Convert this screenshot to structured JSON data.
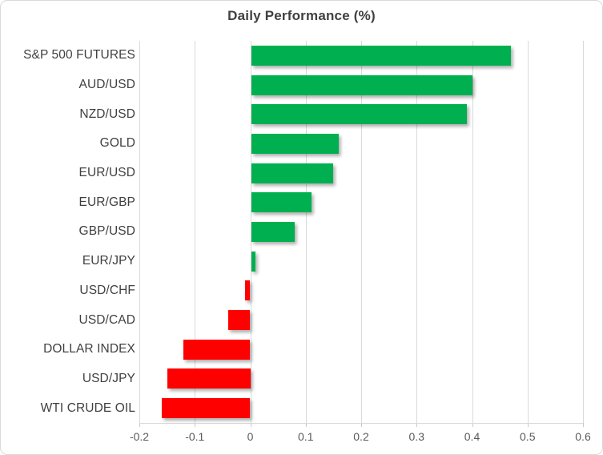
{
  "chart_data": {
    "type": "bar",
    "orientation": "horizontal",
    "title": "Daily Performance (%)",
    "categories": [
      "S&P 500 FUTURES",
      "AUD/USD",
      "NZD/USD",
      "GOLD",
      "EUR/USD",
      "EUR/GBP",
      "GBP/USD",
      "EUR/JPY",
      "USD/CHF",
      "USD/CAD",
      "DOLLAR INDEX",
      "USD/JPY",
      "WTI CRUDE OIL"
    ],
    "values": [
      0.47,
      0.4,
      0.39,
      0.16,
      0.15,
      0.11,
      0.08,
      0.01,
      -0.01,
      -0.04,
      -0.12,
      -0.15,
      -0.16
    ],
    "x_tick_labels": [
      "-0.2",
      "-0.1",
      "0",
      "0.1",
      "0.2",
      "0.3",
      "0.4",
      "0.5",
      "0.6"
    ],
    "xlim": [
      -0.2,
      0.6
    ],
    "xlabel": "",
    "ylabel": "",
    "grid": "vertical",
    "legend": "none",
    "colors": {
      "positive": "#00B050",
      "negative": "#FF0000",
      "gridline": "#D9D9D9",
      "axis_text": "#595959",
      "label_text": "#404040",
      "title_text": "#404040",
      "border": "#D9D9D9",
      "background": "#FFFFFF"
    }
  }
}
